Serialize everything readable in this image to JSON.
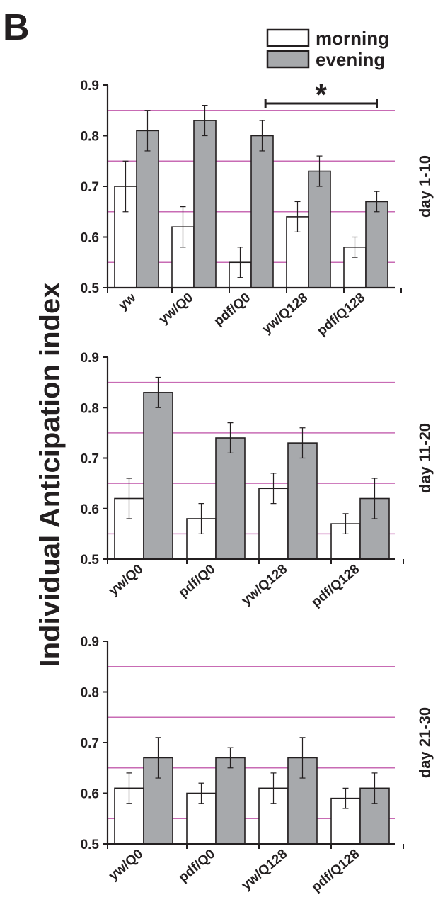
{
  "figure": {
    "panel_label": "B",
    "y_title": "Individual Anticipation index",
    "significance_marker": "*"
  },
  "legend": {
    "entries": [
      {
        "label": "morning",
        "color": "#ffffff"
      },
      {
        "label": "evening",
        "color": "#a7a9ac"
      }
    ]
  },
  "colors": {
    "morning_fill": "#ffffff",
    "evening_fill": "#a7a9ac",
    "reference_line": "#c86bb4",
    "axis": "#231f20"
  },
  "chart_data": [
    {
      "type": "bar",
      "panel_label": "day 1-10",
      "categories": [
        "yw",
        "yw/Q0",
        "pdf/Q0",
        "yw/Q128",
        "pdf/Q128"
      ],
      "series": [
        {
          "name": "morning",
          "values": [
            0.7,
            0.62,
            0.55,
            0.64,
            0.58
          ],
          "errors": [
            0.05,
            0.04,
            0.03,
            0.03,
            0.02
          ]
        },
        {
          "name": "evening",
          "values": [
            0.81,
            0.83,
            0.8,
            0.73,
            0.67
          ],
          "errors": [
            0.04,
            0.03,
            0.03,
            0.03,
            0.02
          ]
        }
      ],
      "ylim": [
        0.5,
        0.9
      ],
      "yticks": [
        "0.5",
        "0.6",
        "0.7",
        "0.8",
        "0.9"
      ],
      "reference_lines": [
        0.55,
        0.65,
        0.75,
        0.85
      ],
      "significance": {
        "from_category": "pdf/Q0",
        "to_category": "pdf/Q128",
        "label": "*"
      }
    },
    {
      "type": "bar",
      "panel_label": "day 11-20",
      "categories": [
        "yw/Q0",
        "pdf/Q0",
        "yw/Q128",
        "pdf/Q128"
      ],
      "series": [
        {
          "name": "morning",
          "values": [
            0.62,
            0.58,
            0.64,
            0.57
          ],
          "errors": [
            0.04,
            0.03,
            0.03,
            0.02
          ]
        },
        {
          "name": "evening",
          "values": [
            0.83,
            0.74,
            0.73,
            0.62
          ],
          "errors": [
            0.03,
            0.03,
            0.03,
            0.04
          ]
        }
      ],
      "ylim": [
        0.5,
        0.9
      ],
      "yticks": [
        "0.5",
        "0.6",
        "0.7",
        "0.8",
        "0.9"
      ],
      "reference_lines": [
        0.55,
        0.65,
        0.75,
        0.85
      ]
    },
    {
      "type": "bar",
      "panel_label": "day 21-30",
      "categories": [
        "yw/Q0",
        "pdf/Q0",
        "yw/Q128",
        "pdf/Q128"
      ],
      "series": [
        {
          "name": "morning",
          "values": [
            0.61,
            0.6,
            0.61,
            0.59
          ],
          "errors": [
            0.03,
            0.02,
            0.03,
            0.02
          ]
        },
        {
          "name": "evening",
          "values": [
            0.67,
            0.67,
            0.67,
            0.61
          ],
          "errors": [
            0.04,
            0.02,
            0.04,
            0.03
          ]
        }
      ],
      "ylim": [
        0.5,
        0.9
      ],
      "yticks": [
        "0.5",
        "0.6",
        "0.7",
        "0.8",
        "0.9"
      ],
      "reference_lines": [
        0.55,
        0.65,
        0.75,
        0.85
      ]
    }
  ]
}
